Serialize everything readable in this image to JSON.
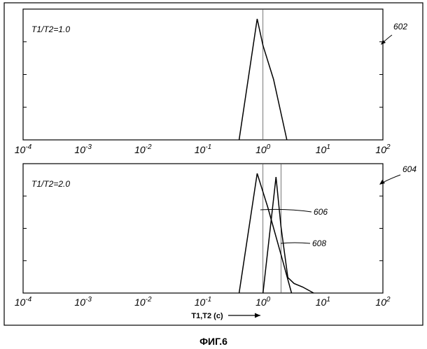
{
  "figure_caption": "ФИГ.6",
  "chart_data": [
    {
      "type": "line",
      "panel_label": "T1/T2=1.0",
      "reference_number": "602",
      "xscale": "log",
      "xlim": [
        0.0001,
        100
      ],
      "xticks": [
        {
          "base": "10",
          "exp": "-4"
        },
        {
          "base": "10",
          "exp": "-3"
        },
        {
          "base": "10",
          "exp": "-2"
        },
        {
          "base": "10",
          "exp": "-1"
        },
        {
          "base": "10",
          "exp": "0"
        },
        {
          "base": "10",
          "exp": "1"
        },
        {
          "base": "10",
          "exp": "2"
        }
      ],
      "ylim": [
        0,
        1
      ],
      "xlabel": "",
      "grid": false,
      "reference_lines_x": [
        1.0
      ],
      "series": [
        {
          "x": [
            0.4,
            0.8,
            1.0,
            1.5,
            2.5
          ],
          "y": [
            0.0,
            1.0,
            0.78,
            0.5,
            0.0
          ]
        }
      ]
    },
    {
      "type": "line",
      "panel_label": "T1/T2=2.0",
      "reference_number": "604",
      "xscale": "log",
      "xlim": [
        0.0001,
        100
      ],
      "xticks": [
        {
          "base": "10",
          "exp": "-4"
        },
        {
          "base": "10",
          "exp": "-3"
        },
        {
          "base": "10",
          "exp": "-2"
        },
        {
          "base": "10",
          "exp": "-1"
        },
        {
          "base": "10",
          "exp": "0"
        },
        {
          "base": "10",
          "exp": "1"
        },
        {
          "base": "10",
          "exp": "2"
        }
      ],
      "ylim": [
        0,
        1
      ],
      "xlabel": "T1,T2 (c)",
      "grid": false,
      "reference_lines_x": [
        1.0,
        2.0
      ],
      "series": [
        {
          "reference_number": "606",
          "x": [
            0.4,
            0.8,
            1.2,
            2.0,
            3.0
          ],
          "y": [
            0.0,
            1.0,
            0.72,
            0.32,
            0.0
          ]
        },
        {
          "reference_number": "608",
          "x": [
            1.0,
            1.65,
            2.0,
            2.6,
            3.3,
            4.6,
            7.0
          ],
          "y": [
            0.0,
            0.97,
            0.55,
            0.13,
            0.08,
            0.05,
            0.0
          ]
        }
      ]
    }
  ]
}
